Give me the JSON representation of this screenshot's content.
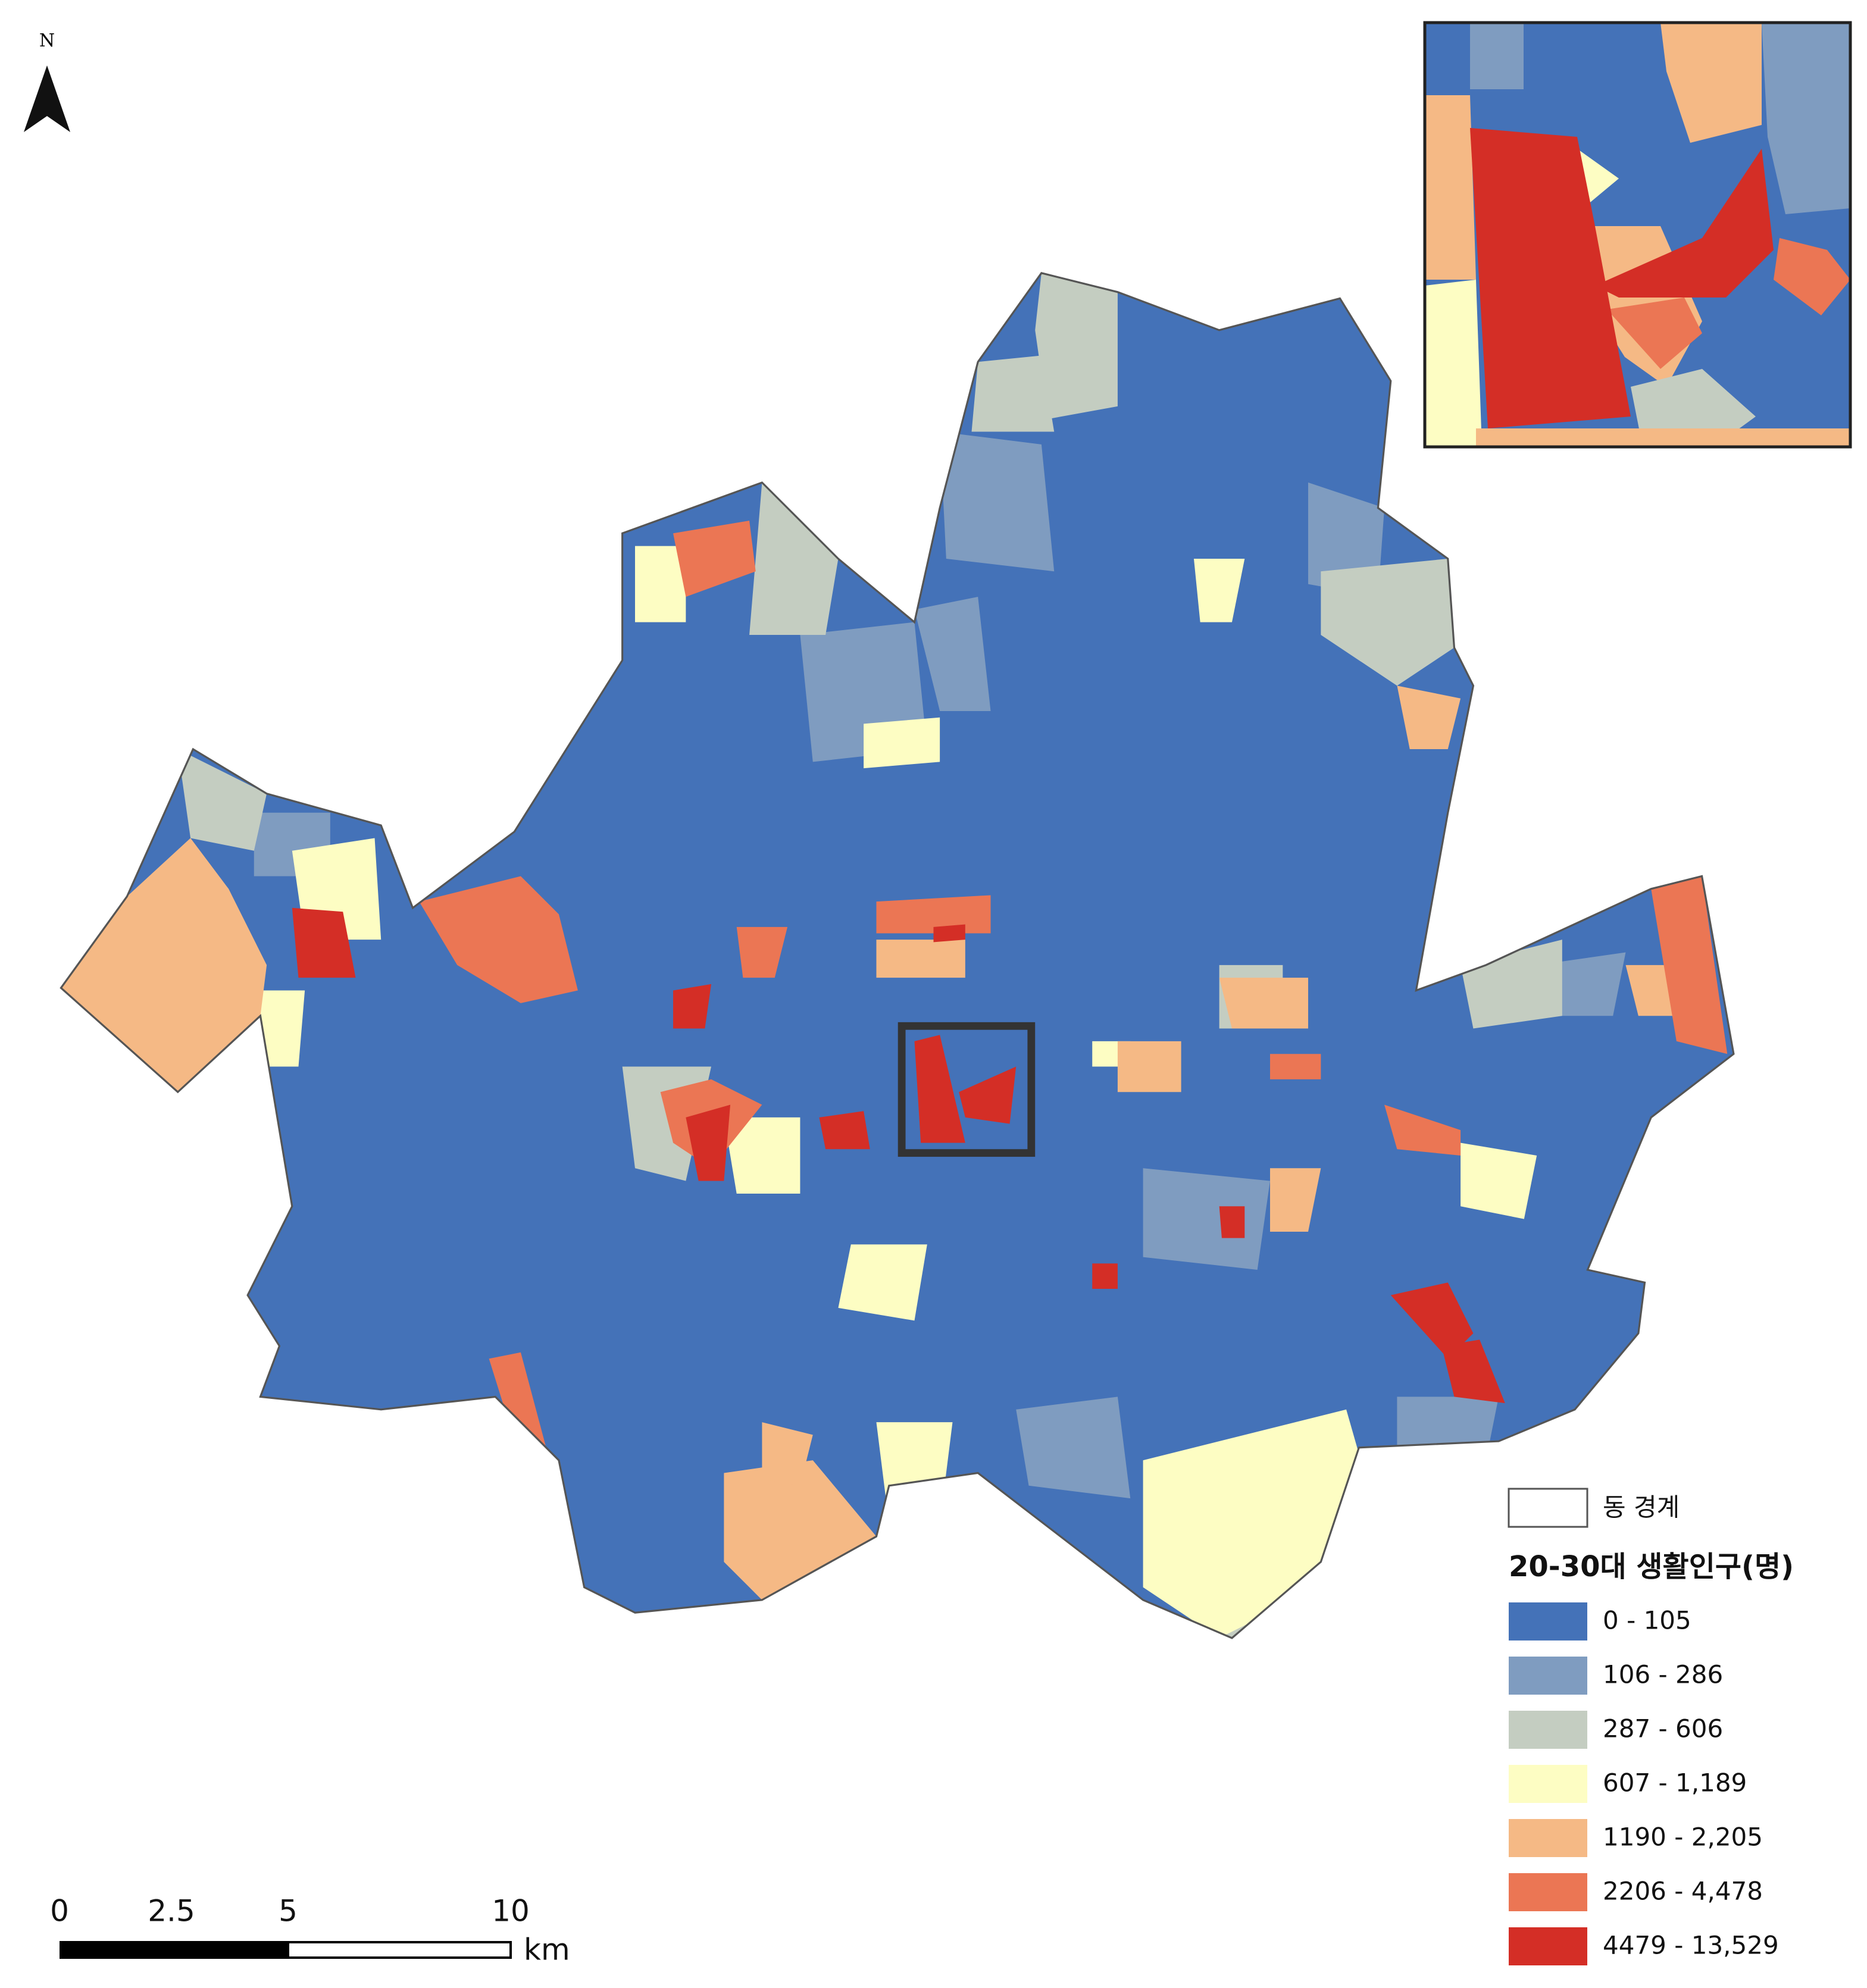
{
  "north_arrow": {
    "label": "N"
  },
  "legend": {
    "boundary_label": "동 경계",
    "title": "20-30대 생활인구(명)",
    "items": [
      {
        "label": "0 - 105",
        "color": "#4472b8"
      },
      {
        "label": "106 - 286",
        "color": "#7f9cc0"
      },
      {
        "label": "287 - 606",
        "color": "#c4cdc1"
      },
      {
        "label": "607 - 1,189",
        "color": "#fdfdc3"
      },
      {
        "label": "1190 - 2,205",
        "color": "#f5b985"
      },
      {
        "label": "2206 - 4,478",
        "color": "#eb7654"
      },
      {
        "label": "4479 - 13,529",
        "color": "#d42e26"
      }
    ]
  },
  "scale_bar": {
    "labels": [
      "0",
      "2.5",
      "5",
      "10"
    ],
    "unit": "km"
  }
}
